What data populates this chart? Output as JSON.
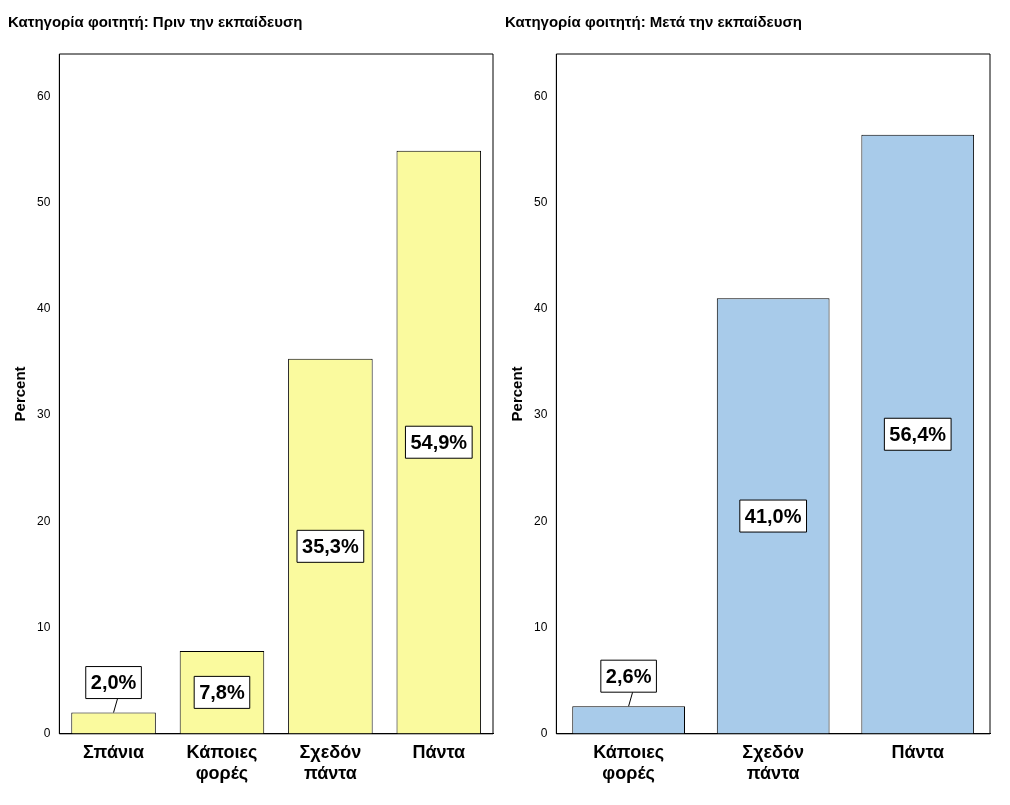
{
  "chart_data": [
    {
      "type": "bar",
      "title": "Κατηγορία φοιτητή: Πριν την εκπαίδευση",
      "ylabel": "Percent",
      "categories": [
        "Σπάνια",
        "Κάποιες φορές",
        "Σχεδόν πάντα",
        "Πάντα"
      ],
      "values": [
        2.0,
        7.8,
        35.3,
        54.9
      ],
      "value_labels": [
        "2,0%",
        "7,8%",
        "35,3%",
        "54,9%"
      ],
      "color": "#fafa9e",
      "ylim": [
        0,
        64
      ],
      "yticks": [
        0,
        10,
        20,
        30,
        40,
        50,
        60
      ],
      "grid": false,
      "legend": false
    },
    {
      "type": "bar",
      "title": "Κατηγορία φοιτητή: Μετά την εκπαίδευση",
      "ylabel": "Percent",
      "categories": [
        "Κάποιες φορές",
        "Σχεδόν πάντα",
        "Πάντα"
      ],
      "values": [
        2.6,
        41.0,
        56.4
      ],
      "value_labels": [
        "2,6%",
        "41,0%",
        "56,4%"
      ],
      "color": "#a8cbea",
      "ylim": [
        0,
        64
      ],
      "yticks": [
        0,
        10,
        20,
        30,
        40,
        50,
        60
      ],
      "grid": false,
      "legend": false
    }
  ]
}
